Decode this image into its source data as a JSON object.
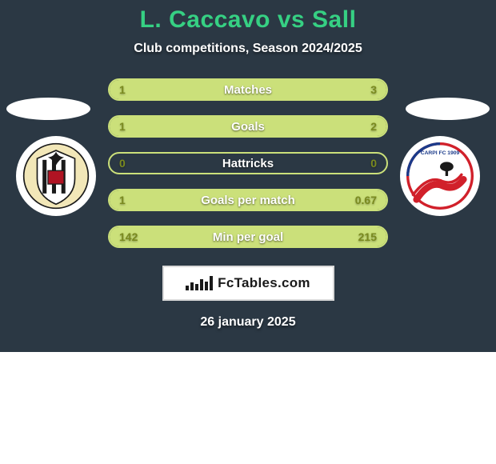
{
  "colors": {
    "background": "#2b3844",
    "title": "#36d083",
    "text_white": "#ffffff",
    "bar_border": "#cbe07a",
    "bar_left_fill": "#cbe07a",
    "bar_right_fill": "#cbe07a",
    "val_left": "#7a8a1f",
    "val_right": "#7a8a1f",
    "brand_border": "#d9d9d9"
  },
  "title": "L. Caccavo vs Sall",
  "subtitle": "Club competitions, Season 2024/2025",
  "date": "26 january 2025",
  "brand": "FcTables.com",
  "bars": [
    {
      "label": "Matches",
      "left": "1",
      "right": "3",
      "left_pct": 25,
      "right_pct": 75
    },
    {
      "label": "Goals",
      "left": "1",
      "right": "2",
      "left_pct": 33,
      "right_pct": 67
    },
    {
      "label": "Hattricks",
      "left": "0",
      "right": "0",
      "left_pct": 0,
      "right_pct": 0
    },
    {
      "label": "Goals per match",
      "left": "1",
      "right": "0.67",
      "left_pct": 60,
      "right_pct": 40
    },
    {
      "label": "Min per goal",
      "left": "142",
      "right": "215",
      "left_pct": 40,
      "right_pct": 60
    }
  ],
  "left_club": {
    "name": "Ascoli Picchio FC",
    "primary": "#1a1a1a",
    "secondary": "#ffffff",
    "accent": "#b01323"
  },
  "right_club": {
    "name": "Carpi FC 1909",
    "primary": "#d1202a",
    "secondary": "#ffffff"
  }
}
